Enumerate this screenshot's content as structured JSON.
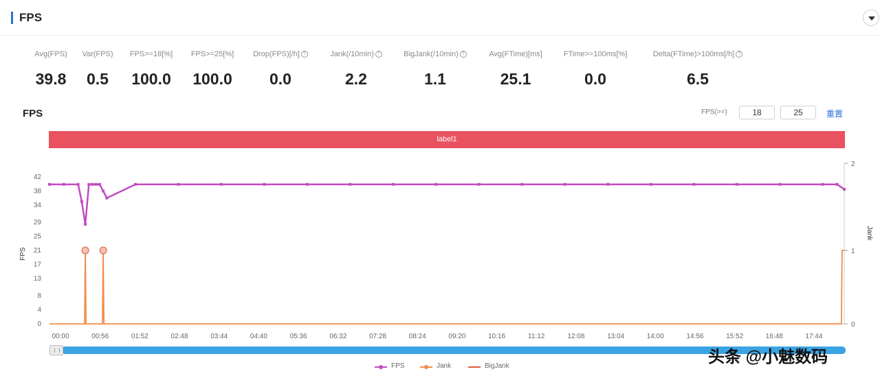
{
  "header": {
    "title": "FPS"
  },
  "metrics": [
    {
      "label": "Avg(FPS)",
      "value": "39.8",
      "info": false
    },
    {
      "label": "Var(FPS)",
      "value": "0.5",
      "info": false
    },
    {
      "label": "FPS>=18[%]",
      "value": "100.0",
      "info": false
    },
    {
      "label": "FPS>=25[%]",
      "value": "100.0",
      "info": false
    },
    {
      "label": "Drop(FPS)[/h]",
      "value": "0.0",
      "info": true
    },
    {
      "label": "Jank(/10min)",
      "value": "2.2",
      "info": true
    },
    {
      "label": "BigJank(/10min)",
      "value": "1.1",
      "info": true
    },
    {
      "label": "Avg(FTime)[ms]",
      "value": "25.1",
      "info": false
    },
    {
      "label": "FTime>=100ms[%]",
      "value": "0.0",
      "info": false
    },
    {
      "label": "Delta(FTime)>100ms[/h]",
      "value": "6.5",
      "info": true
    }
  ],
  "chart": {
    "title": "FPS",
    "threshold_label": "FPS(>=)",
    "threshold_low": "18",
    "threshold_high": "25",
    "reset_label": "重置",
    "label_bar": "label1"
  },
  "legend": [
    {
      "name": "FPS",
      "color": "#c24bc0"
    },
    {
      "name": "Jank",
      "color": "#f08c4a"
    },
    {
      "name": "BigJank",
      "color": "#e05a3a"
    }
  ],
  "watermark": "头条 @小魅数码",
  "chart_data": {
    "type": "line",
    "ylabel": "FPS",
    "y2label": "Jank",
    "yticks": [
      0,
      4,
      8,
      13,
      17,
      21,
      25,
      29,
      34,
      38,
      42
    ],
    "y2ticks": [
      0,
      1,
      2
    ],
    "ylim": [
      0,
      42
    ],
    "y2lim": [
      0,
      2
    ],
    "xlim": [
      0,
      1110
    ],
    "xticks": [
      "00:00",
      "00:56",
      "01:52",
      "02:48",
      "03:44",
      "04:40",
      "05:36",
      "06:32",
      "07:28",
      "08:24",
      "09:20",
      "10:16",
      "11:12",
      "12:08",
      "13:04",
      "14:00",
      "14:56",
      "15:52",
      "16:48",
      "17:44"
    ],
    "grid": false,
    "legend_position": "bottom-center",
    "series": [
      {
        "name": "FPS",
        "axis": "left",
        "x": [
          0,
          20,
          40,
          45,
          50,
          55,
          60,
          65,
          70,
          75,
          80,
          120,
          180,
          240,
          300,
          360,
          420,
          480,
          540,
          600,
          660,
          720,
          780,
          840,
          900,
          960,
          1020,
          1080,
          1100,
          1110
        ],
        "y": [
          39.9,
          39.9,
          39.9,
          35.0,
          28.5,
          39.9,
          39.9,
          39.9,
          39.9,
          38.0,
          36.0,
          39.9,
          39.9,
          39.9,
          39.9,
          39.9,
          39.9,
          39.9,
          39.9,
          39.9,
          39.9,
          39.9,
          39.9,
          39.9,
          39.9,
          39.9,
          39.9,
          39.9,
          39.9,
          38.5
        ]
      },
      {
        "name": "Jank",
        "axis": "right",
        "x": [
          0,
          49,
          50,
          51,
          74,
          75,
          76,
          1106,
          1107,
          1110
        ],
        "y": [
          0,
          0,
          1,
          0,
          0,
          1,
          0,
          0,
          1,
          1
        ]
      },
      {
        "name": "BigJank",
        "axis": "right",
        "x": [
          50,
          75
        ],
        "y": [
          1,
          1
        ]
      }
    ]
  }
}
